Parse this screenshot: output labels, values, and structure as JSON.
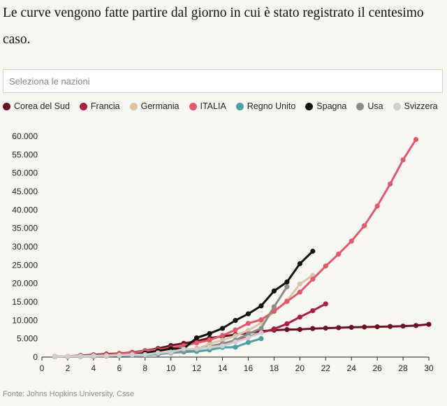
{
  "intro_text": "Le curve vengono fatte partire dal giorno in cui è stato registrato il centesimo caso.",
  "search": {
    "placeholder": "Seleziona le nazioni",
    "value": ""
  },
  "source": "Fonte: Johns Hopkins University, Csse",
  "chart_data": {
    "type": "line",
    "xlim": [
      0,
      30
    ],
    "ylim": [
      0,
      60000
    ],
    "x_ticks": [
      "0",
      "2",
      "4",
      "6",
      "8",
      "10",
      "12",
      "14",
      "16",
      "18",
      "20",
      "22",
      "24",
      "26",
      "28",
      "30"
    ],
    "y_ticks": [
      "0",
      "5.000",
      "10.000",
      "15.000",
      "20.000",
      "25.000",
      "30.000",
      "35.000",
      "40.000",
      "45.000",
      "50.000",
      "55.000",
      "60.000"
    ],
    "grid": false,
    "legend_position": "top",
    "series": [
      {
        "name": "Corea del Sud",
        "color": "#6b1222",
        "x": [
          1,
          2,
          3,
          4,
          5,
          6,
          7,
          8,
          9,
          10,
          11,
          12,
          13,
          14,
          15,
          16,
          17,
          18,
          19,
          20,
          21,
          22,
          23,
          24,
          25,
          26,
          27,
          28,
          29,
          30
        ],
        "y": [
          104,
          204,
          433,
          602,
          833,
          977,
          1261,
          1766,
          2337,
          3150,
          3736,
          4335,
          5186,
          5621,
          6088,
          6593,
          7041,
          7314,
          7478,
          7513,
          7755,
          7869,
          7979,
          8086,
          8162,
          8236,
          8320,
          8413,
          8565,
          8897
        ]
      },
      {
        "name": "Francia",
        "color": "#a8203f",
        "x": [
          1,
          2,
          3,
          4,
          5,
          6,
          7,
          8,
          9,
          10,
          11,
          12,
          13,
          14,
          15,
          16,
          17,
          18,
          19,
          20,
          21,
          22
        ],
        "y": [
          100,
          130,
          191,
          212,
          285,
          423,
          613,
          949,
          1126,
          1412,
          1784,
          2281,
          2876,
          3661,
          4499,
          5423,
          6633,
          7652,
          9043,
          10871,
          12612,
          14459
        ]
      },
      {
        "name": "Germania",
        "color": "#dcc4a8",
        "x": [
          1,
          2,
          3,
          4,
          5,
          6,
          7,
          8,
          9,
          10,
          11,
          12,
          13,
          14,
          15,
          16,
          17,
          18,
          19,
          20,
          21
        ],
        "y": [
          130,
          159,
          196,
          262,
          482,
          670,
          799,
          1040,
          1176,
          1457,
          1908,
          2078,
          3675,
          4585,
          5795,
          7272,
          9257,
          12327,
          15320,
          19848,
          22213
        ]
      },
      {
        "name": "ITALIA",
        "color": "#e05a6b",
        "x": [
          1,
          2,
          3,
          4,
          5,
          6,
          7,
          8,
          9,
          10,
          11,
          12,
          13,
          14,
          15,
          16,
          17,
          18,
          19,
          20,
          21,
          22,
          23,
          24,
          25,
          26,
          27,
          28,
          29
        ],
        "y": [
          155,
          229,
          322,
          453,
          655,
          888,
          1128,
          1694,
          2036,
          2502,
          3089,
          3858,
          4636,
          5883,
          7375,
          9172,
          10149,
          12462,
          15113,
          17660,
          21157,
          24747,
          27980,
          31506,
          35713,
          41035,
          47021,
          53578,
          59138
        ]
      },
      {
        "name": "Regno Unito",
        "color": "#4e9ea0",
        "x": [
          1,
          2,
          3,
          4,
          5,
          6,
          7,
          8,
          9,
          10,
          11,
          12,
          13,
          14,
          15,
          16,
          17
        ],
        "y": [
          115,
          163,
          206,
          273,
          321,
          382,
          456,
          590,
          798,
          1140,
          1391,
          1543,
          1950,
          2626,
          2689,
          3983,
          5018
        ]
      },
      {
        "name": "Spagna",
        "color": "#111111",
        "x": [
          1,
          2,
          3,
          4,
          5,
          6,
          7,
          8,
          9,
          10,
          11,
          12,
          13,
          14,
          15,
          16,
          17,
          18,
          19,
          20,
          21
        ],
        "y": [
          114,
          151,
          200,
          261,
          374,
          430,
          589,
          1073,
          1695,
          2277,
          2277,
          5232,
          6391,
          7798,
          9942,
          11748,
          13910,
          17963,
          20410,
          25374,
          28768
        ]
      },
      {
        "name": "Usa",
        "color": "#8c8c8c",
        "x": [
          1,
          2,
          3,
          4,
          5,
          6,
          7,
          8,
          9,
          10,
          11,
          12,
          13,
          14,
          15,
          16,
          17,
          18,
          19
        ],
        "y": [
          100,
          124,
          158,
          221,
          319,
          435,
          541,
          704,
          994,
          1301,
          1630,
          2183,
          2770,
          3613,
          4596,
          6344,
          7783,
          13677,
          19100
        ]
      },
      {
        "name": "Svizzera",
        "color": "#cfcfcf",
        "x": [
          1,
          2,
          3,
          4,
          5,
          6,
          7,
          8,
          9,
          10,
          11,
          12,
          13,
          14,
          15,
          16,
          17
        ],
        "y": [
          114,
          214,
          268,
          337,
          374,
          491,
          652,
          652,
          1139,
          1359,
          2200,
          2200,
          2700,
          3028,
          4075,
          5294,
          6575
        ]
      }
    ]
  }
}
